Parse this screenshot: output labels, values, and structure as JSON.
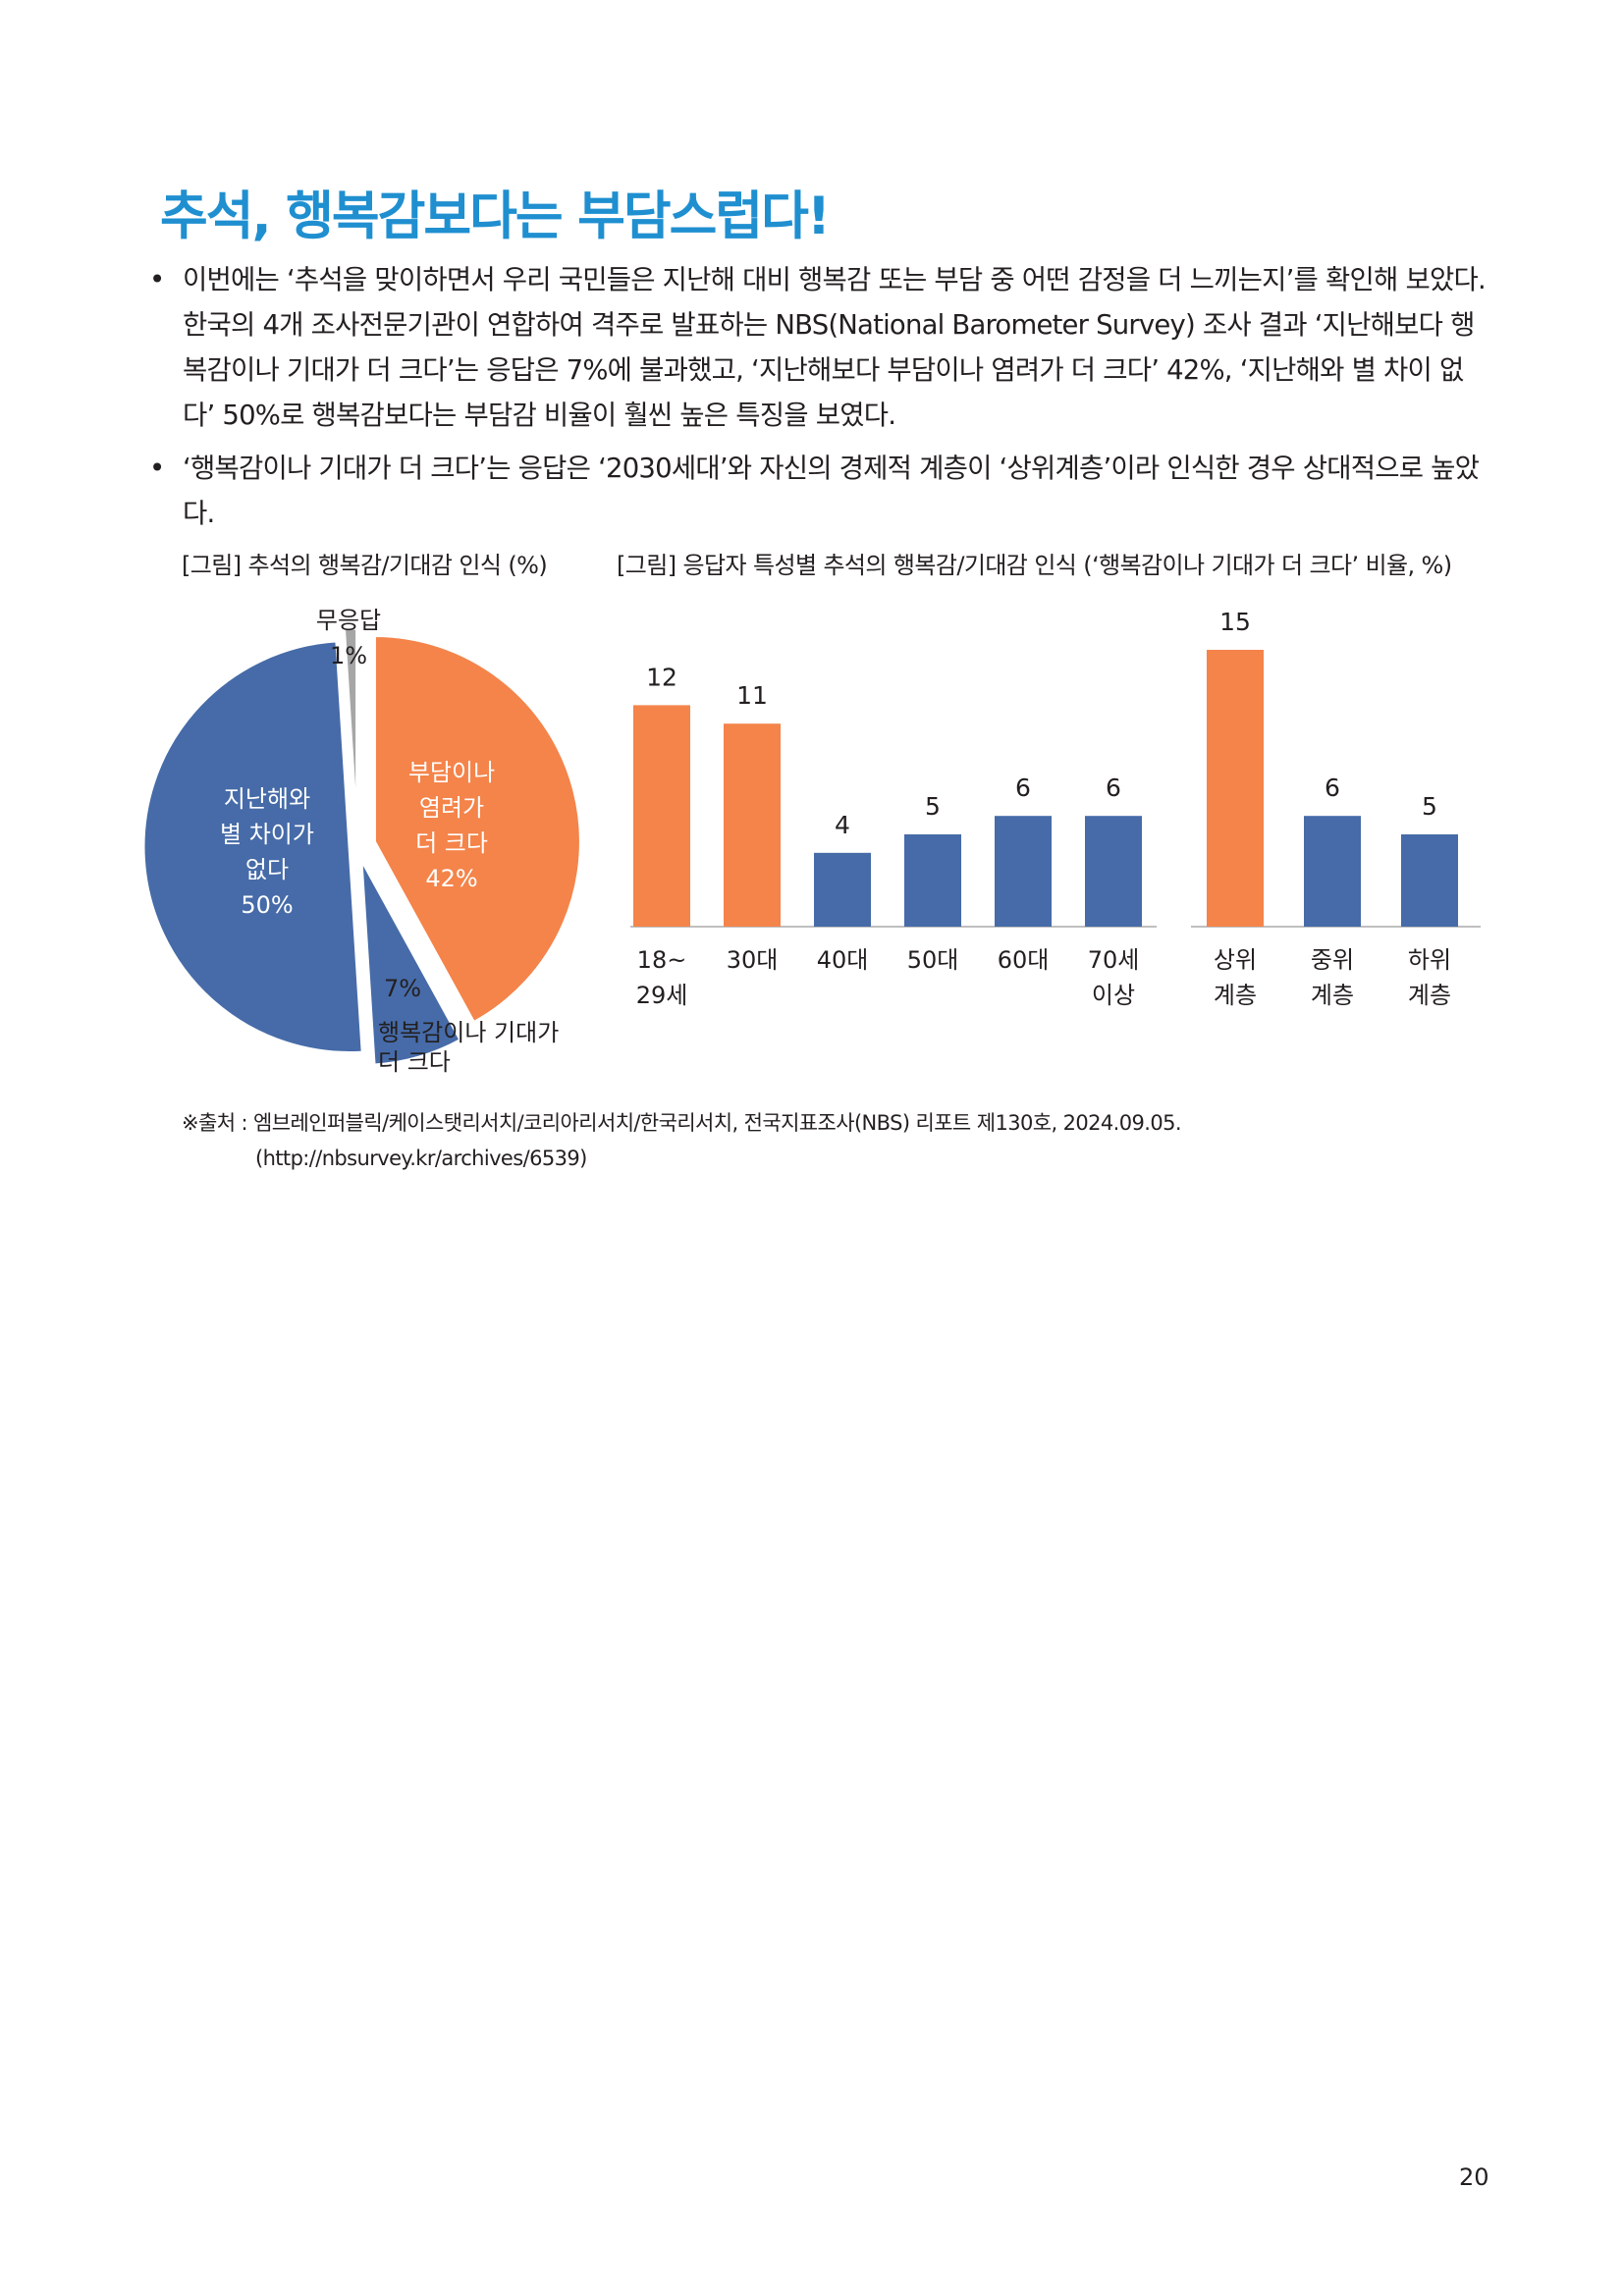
{
  "title": "추석, 행복감보다는 부담스럽다!",
  "bullets": [
    {
      "symbol": "•",
      "text": "이번에는 ‘추석을 맞이하면서 우리 국민들은 지난해 대비 행복감 또는 부담 중 어떤 감정을 더 느끼는지’를 확인해 보았다. 한국의 4개 조사전문기관이 연합하여 격주로 발표하는 NBS(National Barometer Survey) 조사 결과 ‘지난해보다 행복감이나 기대가 더 크다’는 응답은 7%에 불과했고, ‘지난해보다 부담이나 염려가 더 크다’ 42%, ‘지난해와 별 차이 없다’ 50%로 행복감보다는 부담감 비율이 훨씬 높은 특징을 보였다."
    },
    {
      "symbol": "•",
      "text": "‘행복감이나 기대가 더 크다’는 응답은 ‘2030세대’와 자신의 경제적 계층이 ‘상위계층’이라 인식한 경우 상대적으로 높았다."
    }
  ],
  "figure1_caption": "[그림] 추석의 행복감/기대감 인식 (%)",
  "figure2_caption": "[그림] 응답자 특성별 추석의 행복감/기대감 인식 (‘행복감이나 기대가 더 크다’ 비율, %)",
  "source": {
    "line1": "※출처 : 엠브레인퍼블릭/케이스탯리서치/코리아리서치/한국리서치, 전국지표조사(NBS) 리포트 제130호, 2024.09.05.",
    "line2": "(http://nbsurvey.kr/archives/6539)"
  },
  "page_number": "20",
  "colors": {
    "orange": "#f4844a",
    "blue": "#466ba8",
    "gray": "#a6a6a6",
    "title": "#1f8fd0"
  },
  "chart_data": [
    {
      "type": "pie",
      "slices": [
        {
          "label_lines": [
            "부담이나",
            "염려가",
            "더 크다"
          ],
          "value": 42,
          "value_label": "42%",
          "color": "#f4844a"
        },
        {
          "label_lines": [
            "행복감이나 기대가",
            "더 크다"
          ],
          "value": 7,
          "value_label": "7%",
          "color": "#466ba8"
        },
        {
          "label_lines": [
            "지난해와",
            "별 차이가",
            "없다"
          ],
          "value": 50,
          "value_label": "50%",
          "color": "#466ba8"
        },
        {
          "label_lines": [
            "무응답"
          ],
          "value": 1,
          "value_label": "1%",
          "color": "#a6a6a6"
        }
      ]
    },
    {
      "type": "bar",
      "groups": [
        {
          "bars": [
            {
              "label_lines": [
                "18~",
                "29세"
              ],
              "value": 12,
              "color": "#f4844a"
            },
            {
              "label_lines": [
                "30대"
              ],
              "value": 11,
              "color": "#f4844a"
            },
            {
              "label_lines": [
                "40대"
              ],
              "value": 4,
              "color": "#466ba8"
            },
            {
              "label_lines": [
                "50대"
              ],
              "value": 5,
              "color": "#466ba8"
            },
            {
              "label_lines": [
                "60대"
              ],
              "value": 6,
              "color": "#466ba8"
            },
            {
              "label_lines": [
                "70세",
                "이상"
              ],
              "value": 6,
              "color": "#466ba8"
            }
          ]
        },
        {
          "bars": [
            {
              "label_lines": [
                "상위",
                "계층"
              ],
              "value": 15,
              "color": "#f4844a"
            },
            {
              "label_lines": [
                "중위",
                "계층"
              ],
              "value": 6,
              "color": "#466ba8"
            },
            {
              "label_lines": [
                "하위",
                "계층"
              ],
              "value": 5,
              "color": "#466ba8"
            }
          ]
        }
      ]
    }
  ]
}
